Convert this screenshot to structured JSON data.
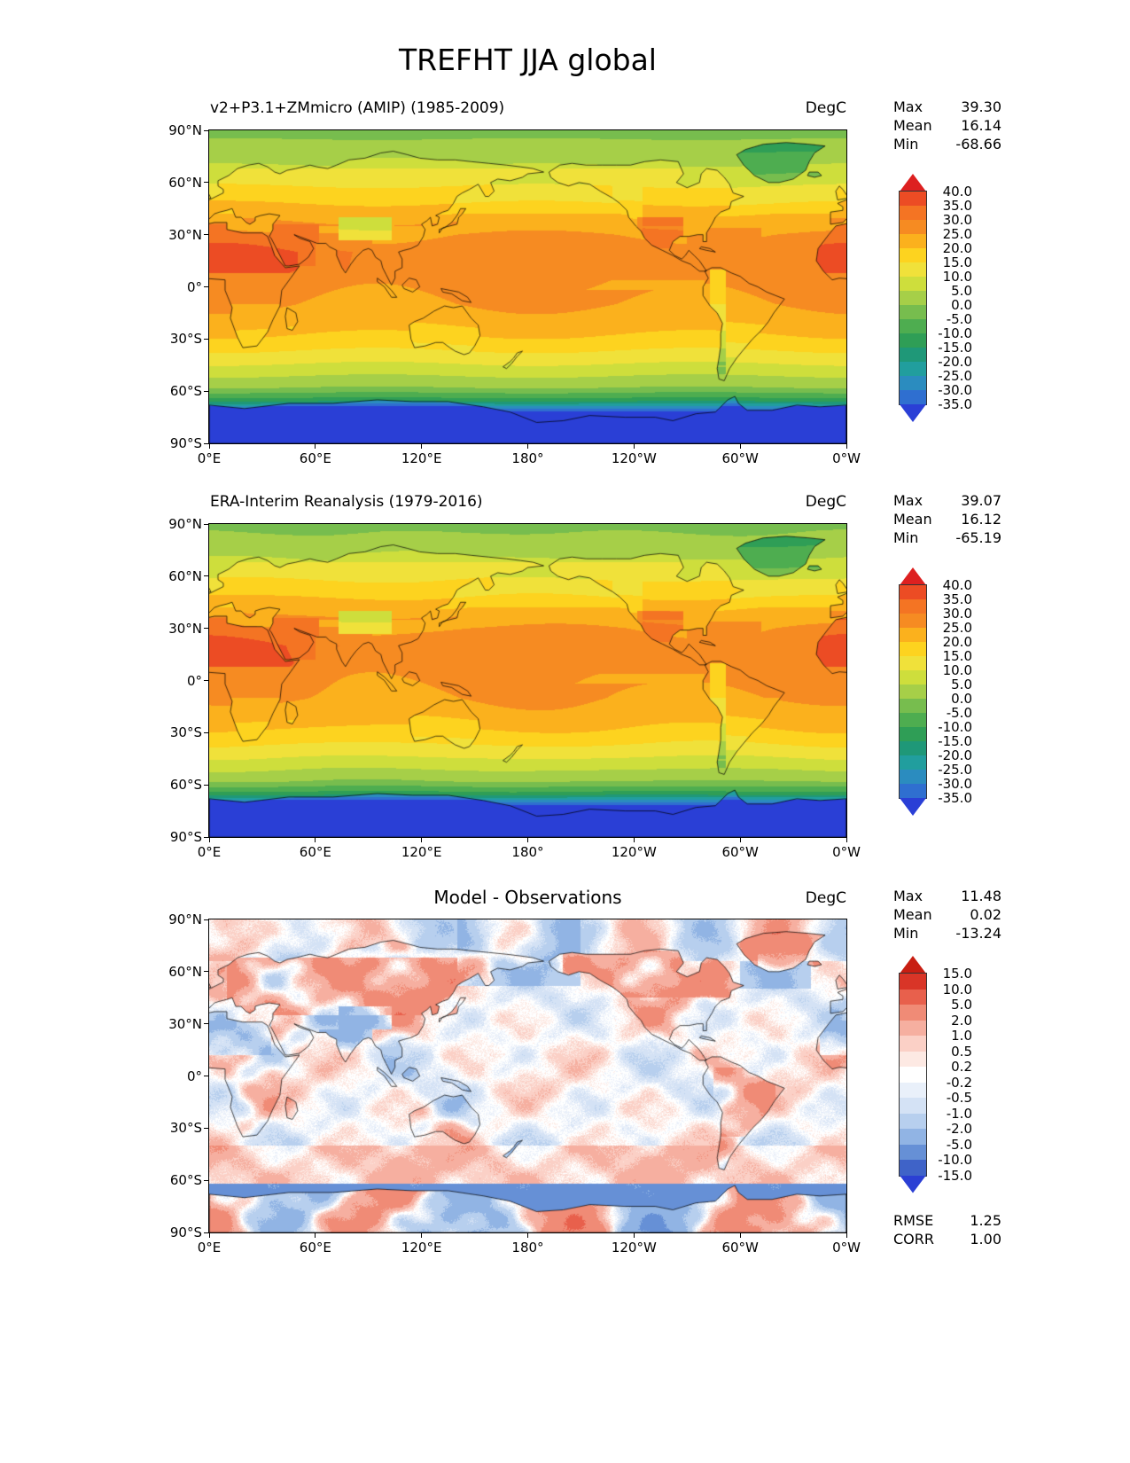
{
  "title": "TREFHT JJA global",
  "chart_data": [
    {
      "type": "heatmap",
      "title": "v2+P3.1+ZMmicro (AMIP) (1985-2009)",
      "units": "DegC",
      "stats": {
        "max_label": "Max",
        "max_value": "39.30",
        "mean_label": "Mean",
        "mean_value": "16.14",
        "min_label": "Min",
        "min_value": "-68.66"
      },
      "x_ticks": [
        "0°E",
        "60°E",
        "120°E",
        "180°",
        "120°W",
        "60°W",
        "0°W"
      ],
      "y_ticks": [
        "90°N",
        "60°N",
        "30°N",
        "0°",
        "30°S",
        "60°S",
        "90°S"
      ],
      "colorbar": {
        "ticks": [
          "40.0",
          "35.0",
          "30.0",
          "25.0",
          "20.0",
          "15.0",
          "10.0",
          "5.0",
          "0.0",
          "-5.0",
          "-10.0",
          "-15.0",
          "-20.0",
          "-25.0",
          "-30.0",
          "-35.0"
        ],
        "segment_colors": [
          "#ec4c24",
          "#f47423",
          "#f68b22",
          "#fbb11d",
          "#fdd31f",
          "#f0e13a",
          "#cede3c",
          "#a6cf48",
          "#77bd4e",
          "#4ead50",
          "#2f9e56",
          "#1f9878",
          "#219e9e",
          "#2b8cbf",
          "#2f6fd0"
        ],
        "over_color": "#dd2020",
        "under_color": "#2a3fd6"
      },
      "zonal_profile_estimate": [
        [
          90,
          1
        ],
        [
          80,
          3
        ],
        [
          70,
          7
        ],
        [
          60,
          11
        ],
        [
          50,
          16
        ],
        [
          40,
          21
        ],
        [
          30,
          25
        ],
        [
          20,
          27
        ],
        [
          10,
          27
        ],
        [
          0,
          26
        ],
        [
          -10,
          25
        ],
        [
          -20,
          23
        ],
        [
          -30,
          19
        ],
        [
          -40,
          13
        ],
        [
          -50,
          6
        ],
        [
          -58,
          0
        ],
        [
          -65,
          -12
        ],
        [
          -70,
          -30
        ],
        [
          -75,
          -46
        ],
        [
          -80,
          -53
        ],
        [
          -90,
          -58
        ]
      ]
    },
    {
      "type": "heatmap",
      "title": "ERA-Interim Reanalysis (1979-2016)",
      "units": "DegC",
      "stats": {
        "max_label": "Max",
        "max_value": "39.07",
        "mean_label": "Mean",
        "mean_value": "16.12",
        "min_label": "Min",
        "min_value": "-65.19"
      },
      "x_ticks": [
        "0°E",
        "60°E",
        "120°E",
        "180°",
        "120°W",
        "60°W",
        "0°W"
      ],
      "y_ticks": [
        "90°N",
        "60°N",
        "30°N",
        "0°",
        "30°S",
        "60°S",
        "90°S"
      ],
      "colorbar": {
        "ticks": [
          "40.0",
          "35.0",
          "30.0",
          "25.0",
          "20.0",
          "15.0",
          "10.0",
          "5.0",
          "0.0",
          "-5.0",
          "-10.0",
          "-15.0",
          "-20.0",
          "-25.0",
          "-30.0",
          "-35.0"
        ],
        "segment_colors": [
          "#ec4c24",
          "#f47423",
          "#f68b22",
          "#fbb11d",
          "#fdd31f",
          "#f0e13a",
          "#cede3c",
          "#a6cf48",
          "#77bd4e",
          "#4ead50",
          "#2f9e56",
          "#1f9878",
          "#219e9e",
          "#2b8cbf",
          "#2f6fd0"
        ],
        "over_color": "#dd2020",
        "under_color": "#2a3fd6"
      }
    },
    {
      "type": "heatmap",
      "title": "Model - Observations",
      "units": "DegC",
      "stats": {
        "max_label": "Max",
        "max_value": "11.48",
        "mean_label": "Mean",
        "mean_value": "0.02",
        "min_label": "Min",
        "min_value": "-13.24"
      },
      "extra_stats": {
        "rmse_label": "RMSE",
        "rmse_value": "1.25",
        "corr_label": "CORR",
        "corr_value": "1.00"
      },
      "x_ticks": [
        "0°E",
        "60°E",
        "120°E",
        "180°",
        "120°W",
        "60°W",
        "0°W"
      ],
      "y_ticks": [
        "90°N",
        "60°N",
        "30°N",
        "0°",
        "30°S",
        "60°S",
        "90°S"
      ],
      "colorbar": {
        "ticks": [
          "15.0",
          "10.0",
          "5.0",
          "2.0",
          "1.0",
          "0.5",
          "0.2",
          "-0.2",
          "-0.5",
          "-1.0",
          "-2.0",
          "-5.0",
          "-10.0",
          "-15.0"
        ],
        "segment_colors": [
          "#d93527",
          "#e8604c",
          "#f08b76",
          "#f6afa0",
          "#fbd0c6",
          "#fde9e3",
          "#ffffff",
          "#e9f0fa",
          "#d4e2f5",
          "#b7cfee",
          "#91b4e4",
          "#6690d6",
          "#3f63c8"
        ],
        "over_color": "#c81e12",
        "under_color": "#2b3fd4"
      }
    }
  ]
}
